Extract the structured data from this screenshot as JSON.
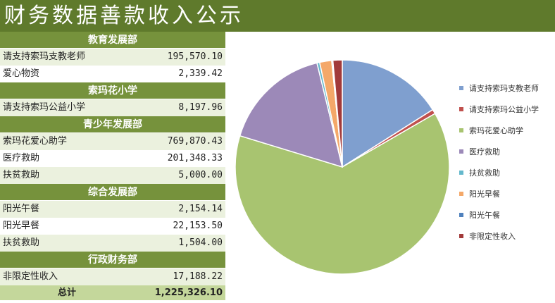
{
  "title": "财务数据善款收入公示",
  "sections": [
    {
      "name": "教育发展部",
      "rows": [
        {
          "label": "请支持索玛支教老师",
          "amount": "195,570.10"
        },
        {
          "label": "爱心物资",
          "amount": "2,339.42"
        }
      ]
    },
    {
      "name": "索玛花小学",
      "rows": [
        {
          "label": "请支持索玛公益小学",
          "amount": "8,197.96"
        }
      ]
    },
    {
      "name": "青少年发展部",
      "rows": [
        {
          "label": "索玛花爱心助学",
          "amount": "769,870.43"
        },
        {
          "label": "医疗救助",
          "amount": "201,348.33"
        },
        {
          "label": "扶贫救助",
          "amount": "5,000.00"
        }
      ]
    },
    {
      "name": "综合发展部",
      "rows": [
        {
          "label": "阳光午餐",
          "amount": "2,154.14"
        },
        {
          "label": "阳光早餐",
          "amount": "22,153.50"
        },
        {
          "label": "扶贫救助",
          "amount": "1,504.00"
        }
      ]
    },
    {
      "name": "行政财务部",
      "rows": [
        {
          "label": "非限定性收入",
          "amount": "17,188.22"
        }
      ]
    }
  ],
  "total": {
    "label": "总计",
    "amount": "1,225,326.10"
  },
  "chart_data": {
    "type": "pie",
    "title": "",
    "series": [
      {
        "labels": [
          "请支持索玛支教老师",
          "请支持索玛公益小学",
          "索玛花爱心助学",
          "医疗救助",
          "扶贫救助",
          "阳光早餐",
          "阳光午餐",
          "非限定性收入"
        ],
        "values": [
          195570.1,
          8197.96,
          769870.43,
          201348.33,
          5000.0,
          22153.5,
          2154.14,
          17188.22
        ],
        "colors": [
          "#7f9fcf",
          "#c0504d",
          "#a8c470",
          "#9c89b8",
          "#64b8cc",
          "#f4a869",
          "#4f81bd",
          "#a23a3a"
        ]
      }
    ],
    "legend_position": "right"
  }
}
